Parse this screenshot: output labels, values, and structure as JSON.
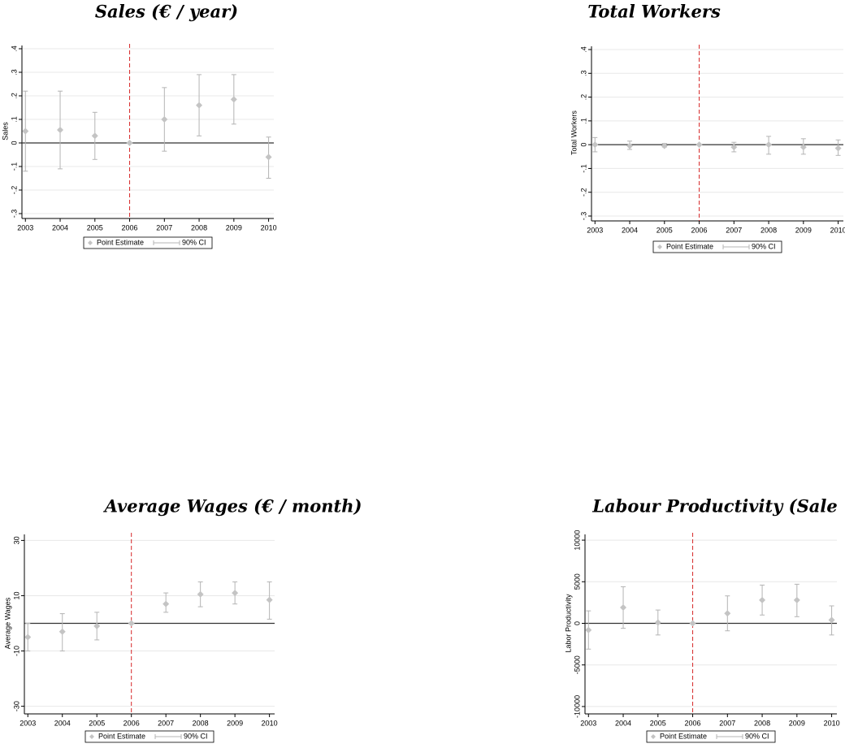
{
  "chart_data": [
    {
      "type": "errorbar",
      "title": "Sales (€ / year)",
      "ylabel": "Sales",
      "x": [
        2003,
        2004,
        2005,
        2006,
        2007,
        2008,
        2009,
        2010
      ],
      "xticks": [
        2003,
        2004,
        2005,
        2006,
        2007,
        2008,
        2009,
        2010
      ],
      "xlim": [
        2002.9,
        2010.15
      ],
      "ylim": [
        -0.3,
        0.4
      ],
      "yticks": [
        {
          "value": -0.3,
          "label": "-.3"
        },
        {
          "value": -0.2,
          "label": "-.2"
        },
        {
          "value": -0.1,
          "label": "-.1"
        },
        0,
        {
          "value": 0.1,
          "label": ".1"
        },
        {
          "value": 0.2,
          "label": ".2"
        },
        {
          "value": 0.3,
          "label": ".3"
        },
        {
          "value": 0.4,
          "label": ".4"
        }
      ],
      "grid": true,
      "hline": 0,
      "vline": 2006,
      "vline_color": "#d62728",
      "series": [
        {
          "name": "Point Estimate",
          "color": "#c4c4c4",
          "values": [
            0.05,
            0.055,
            0.03,
            0,
            0.1,
            0.16,
            0.185,
            -0.06
          ]
        },
        {
          "name": "90% CI",
          "color": "#b4b4b4",
          "lower": [
            -0.12,
            -0.11,
            -0.07,
            0,
            -0.035,
            0.03,
            0.08,
            -0.15
          ],
          "upper": [
            0.22,
            0.22,
            0.13,
            0,
            0.235,
            0.29,
            0.29,
            0.025
          ]
        }
      ]
    },
    {
      "type": "errorbar",
      "title": "Total Workers",
      "ylabel": "Total Workers",
      "x": [
        2003,
        2004,
        2005,
        2006,
        2007,
        2008,
        2009,
        2010
      ],
      "xticks": [
        2003,
        2004,
        2005,
        2006,
        2007,
        2008,
        2009,
        2010
      ],
      "xlim": [
        2002.9,
        2010.15
      ],
      "ylim": [
        -0.3,
        0.4
      ],
      "yticks": [
        {
          "value": -0.3,
          "label": "-.3"
        },
        {
          "value": -0.2,
          "label": "-.2"
        },
        {
          "value": -0.1,
          "label": "-.1"
        },
        0,
        {
          "value": 0.1,
          "label": ".1"
        },
        {
          "value": 0.2,
          "label": ".2"
        },
        {
          "value": 0.3,
          "label": ".3"
        },
        {
          "value": 0.4,
          "label": ".4"
        }
      ],
      "grid": true,
      "hline": 0,
      "vline": 2006,
      "vline_color": "#d62728",
      "series": [
        {
          "name": "Point Estimate",
          "color": "#c4c4c4",
          "values": [
            0,
            -0.005,
            -0.005,
            0,
            -0.01,
            0,
            -0.01,
            -0.015
          ]
        },
        {
          "name": "90% CI",
          "color": "#b4b4b4",
          "lower": [
            -0.03,
            -0.02,
            -0.01,
            0,
            -0.03,
            -0.04,
            -0.04,
            -0.045
          ],
          "upper": [
            0.03,
            0.015,
            0.005,
            0,
            0.01,
            0.035,
            0.025,
            0.02
          ]
        }
      ]
    },
    {
      "type": "errorbar",
      "title": "Average Wages (€ / month)",
      "ylabel": "Average Wages",
      "x": [
        2003,
        2004,
        2005,
        2006,
        2007,
        2008,
        2009,
        2010
      ],
      "xticks": [
        2003,
        2004,
        2005,
        2006,
        2007,
        2008,
        2009,
        2010
      ],
      "xlim": [
        2002.9,
        2010.15
      ],
      "ylim": [
        -31,
        31
      ],
      "yticks": [
        -30,
        -10,
        10,
        30
      ],
      "grid": true,
      "hline": 0,
      "vline": 2006,
      "vline_color": "#d62728",
      "series": [
        {
          "name": "Point Estimate",
          "color": "#c4c4c4",
          "values": [
            -5,
            -3,
            -1,
            0,
            7,
            10.5,
            11,
            8.5
          ]
        },
        {
          "name": "90% CI",
          "color": "#b4b4b4",
          "lower": [
            -10,
            -10,
            -6,
            0,
            4,
            6,
            7,
            1.5
          ],
          "upper": [
            0,
            3.5,
            4,
            0,
            11,
            15,
            15,
            15
          ]
        }
      ]
    },
    {
      "type": "errorbar",
      "title": "Labour Productivity (Sale",
      "ylabel": "Labor Productivity",
      "x": [
        2003,
        2004,
        2005,
        2006,
        2007,
        2008,
        2009,
        2010
      ],
      "xticks": [
        2003,
        2004,
        2005,
        2006,
        2007,
        2008,
        2009,
        2010
      ],
      "xlim": [
        2002.9,
        2010.15
      ],
      "ylim": [
        -10300,
        10300
      ],
      "yticks": [
        -10000,
        -5000,
        0,
        5000,
        10000
      ],
      "grid": true,
      "hline": 0,
      "vline": 2006,
      "vline_color": "#d62728",
      "series": [
        {
          "name": "Point Estimate",
          "color": "#c4c4c4",
          "values": [
            -800,
            1900,
            100,
            0,
            1200,
            2800,
            2800,
            400
          ]
        },
        {
          "name": "90% CI",
          "color": "#b4b4b4",
          "lower": [
            -3100,
            -600,
            -1400,
            0,
            -900,
            1000,
            800,
            -1400
          ],
          "upper": [
            1500,
            4400,
            1600,
            0,
            3300,
            4600,
            4700,
            2100
          ]
        }
      ]
    }
  ]
}
